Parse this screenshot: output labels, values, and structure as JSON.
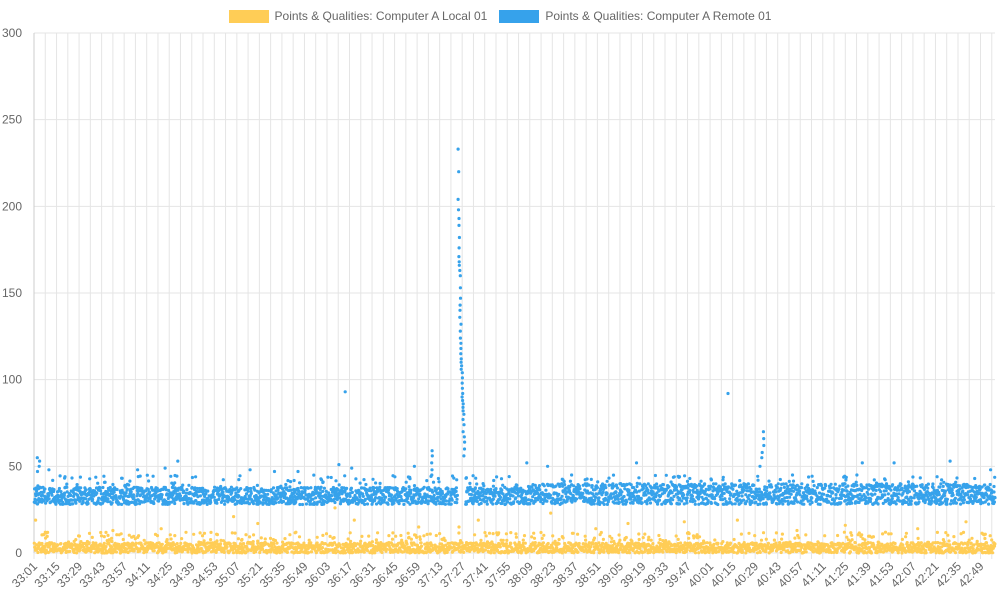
{
  "colors": {
    "local": "#ffcd56",
    "remote": "#36a2eb",
    "grid": "#e5e5e5",
    "text": "#666666"
  },
  "chart_data": {
    "type": "scatter",
    "title": "",
    "xlabel": "",
    "ylabel": "",
    "ylim": [
      0,
      300
    ],
    "yticks": [
      0,
      50,
      100,
      150,
      200,
      250,
      300
    ],
    "xlim_seconds": [
      1981,
      2578
    ],
    "x_ticks": [
      "33:01",
      "33:15",
      "33:29",
      "33:43",
      "33:57",
      "34:11",
      "34:25",
      "34:39",
      "34:53",
      "35:07",
      "35:21",
      "35:35",
      "35:49",
      "36:03",
      "36:17",
      "36:31",
      "36:45",
      "36:59",
      "37:13",
      "37:27",
      "37:41",
      "37:55",
      "38:09",
      "38:23",
      "38:37",
      "38:51",
      "39:05",
      "39:19",
      "39:33",
      "39:47",
      "40:01",
      "40:15",
      "40:29",
      "40:43",
      "40:57",
      "41:11",
      "41:25",
      "41:39",
      "41:53",
      "42:07",
      "42:21",
      "42:35",
      "42:49"
    ],
    "series": [
      {
        "name": "Points & Qualities: Computer A Local 01",
        "color": "#ffcd56",
        "baseline_band": [
          0,
          6
        ],
        "outliers": [
          {
            "t": "33:02",
            "y": 19
          },
          {
            "t": "33:08",
            "y": 12
          },
          {
            "t": "33:50",
            "y": 13
          },
          {
            "t": "34:20",
            "y": 14
          },
          {
            "t": "35:05",
            "y": 21
          },
          {
            "t": "35:20",
            "y": 17
          },
          {
            "t": "36:08",
            "y": 26
          },
          {
            "t": "36:20",
            "y": 19
          },
          {
            "t": "37:00",
            "y": 15
          },
          {
            "t": "37:25",
            "y": 15
          },
          {
            "t": "37:37",
            "y": 19
          },
          {
            "t": "38:22",
            "y": 23
          },
          {
            "t": "38:50",
            "y": 14
          },
          {
            "t": "39:10",
            "y": 17
          },
          {
            "t": "39:45",
            "y": 18
          },
          {
            "t": "40:18",
            "y": 19
          },
          {
            "t": "40:55",
            "y": 13
          },
          {
            "t": "41:25",
            "y": 16
          },
          {
            "t": "41:50",
            "y": 12
          },
          {
            "t": "42:10",
            "y": 14
          },
          {
            "t": "42:40",
            "y": 18
          },
          {
            "t": "42:55",
            "y": 10
          }
        ]
      },
      {
        "name": "Points & Qualities: Computer A Remote 01",
        "color": "#36a2eb",
        "baseline_band": [
          28,
          38
        ],
        "outliers": [
          {
            "t": "33:03",
            "y": 55
          },
          {
            "t": "33:04",
            "y": 53
          },
          {
            "t": "33:04",
            "y": 50
          },
          {
            "t": "33:03",
            "y": 47
          },
          {
            "t": "33:10",
            "y": 48
          },
          {
            "t": "33:20",
            "y": 44
          },
          {
            "t": "34:05",
            "y": 48
          },
          {
            "t": "34:22",
            "y": 49
          },
          {
            "t": "34:30",
            "y": 53
          },
          {
            "t": "35:15",
            "y": 48
          },
          {
            "t": "35:30",
            "y": 47
          },
          {
            "t": "35:45",
            "y": 47
          },
          {
            "t": "36:14",
            "y": 93
          },
          {
            "t": "36:10",
            "y": 51
          },
          {
            "t": "36:18",
            "y": 49
          },
          {
            "t": "36:57",
            "y": 50
          },
          {
            "t": "37:08",
            "y": 59
          },
          {
            "t": "37:08",
            "y": 56
          },
          {
            "t": "37:08",
            "y": 52
          },
          {
            "t": "37:08",
            "y": 48
          },
          {
            "t": "37:08",
            "y": 45
          },
          {
            "t": "38:07",
            "y": 52
          },
          {
            "t": "38:20",
            "y": 50
          },
          {
            "t": "39:15",
            "y": 52
          },
          {
            "t": "40:12",
            "y": 92
          },
          {
            "t": "40:34",
            "y": 70
          },
          {
            "t": "40:34",
            "y": 66
          },
          {
            "t": "40:34",
            "y": 62
          },
          {
            "t": "40:33",
            "y": 58
          },
          {
            "t": "40:33",
            "y": 55
          },
          {
            "t": "40:32",
            "y": 50
          },
          {
            "t": "41:35",
            "y": 52
          },
          {
            "t": "41:55",
            "y": 52
          },
          {
            "t": "42:30",
            "y": 53
          },
          {
            "t": "42:55",
            "y": 48
          }
        ],
        "spike": {
          "start": "37:24",
          "end": "37:28",
          "points": [
            233,
            220,
            204,
            198,
            193,
            189,
            182,
            176,
            171,
            168,
            166,
            163,
            160,
            153,
            147,
            143,
            140,
            136,
            132,
            128,
            124,
            121,
            118,
            115,
            112,
            110,
            108,
            106,
            104,
            101,
            98,
            95,
            92,
            90,
            88,
            86,
            84,
            82,
            80,
            77,
            74,
            70,
            67,
            64,
            60,
            56
          ]
        }
      }
    ]
  }
}
